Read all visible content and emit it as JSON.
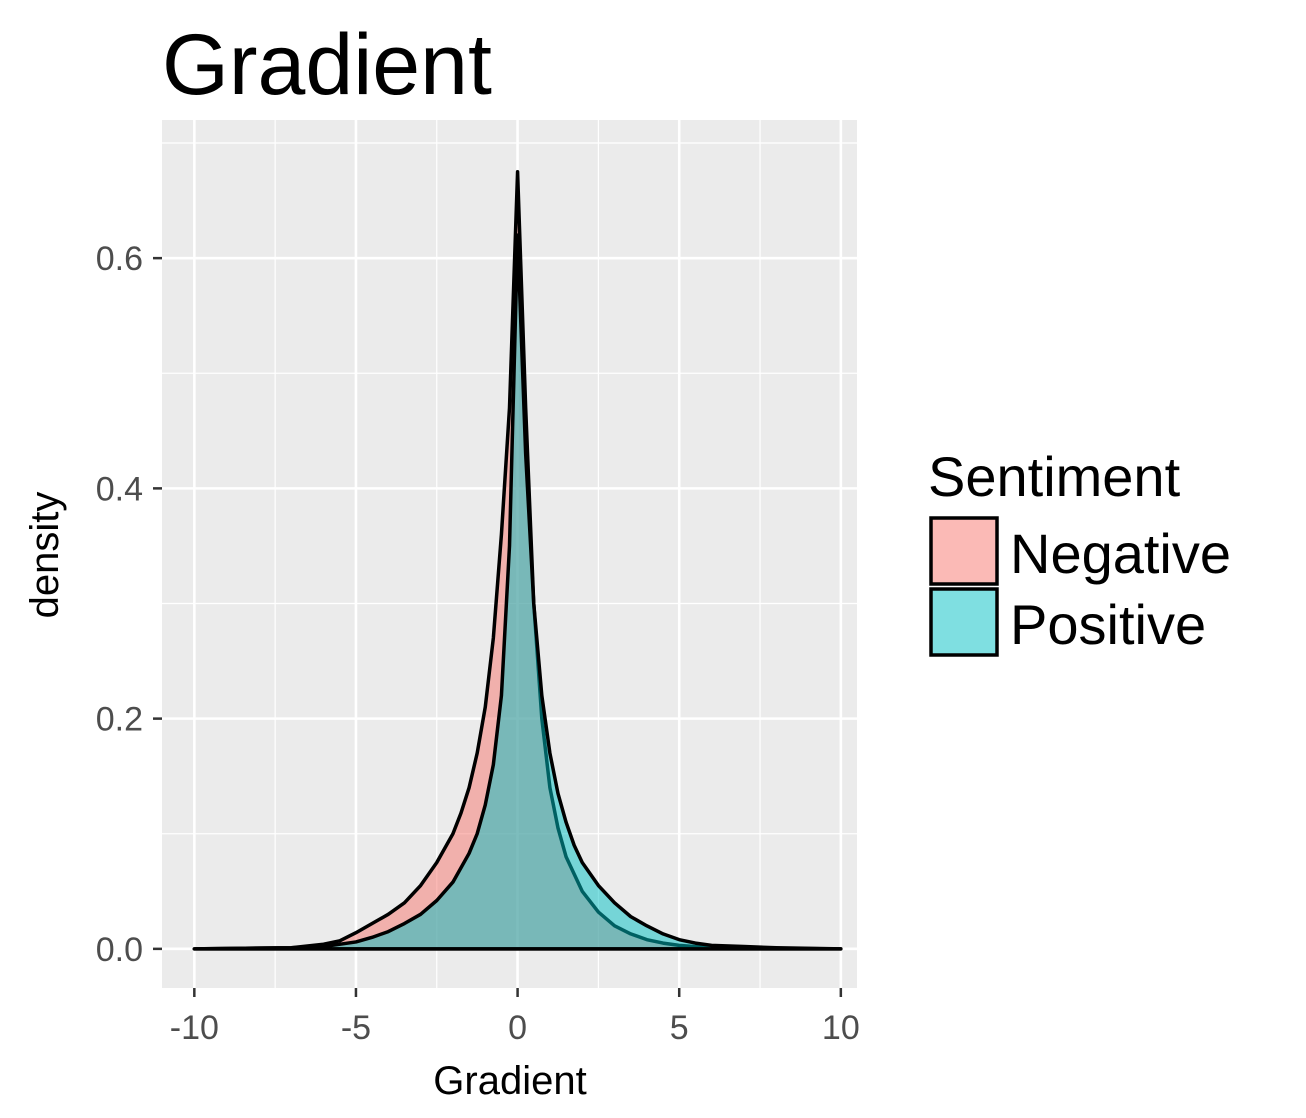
{
  "chart_data": {
    "type": "area",
    "title": "Gradient",
    "xlabel": "Gradient",
    "ylabel": "density",
    "xlim": [
      -11,
      10.5
    ],
    "ylim": [
      -0.034,
      0.72
    ],
    "x_ticks": [
      -10,
      -5,
      0,
      5,
      10
    ],
    "x_tick_labels": [
      "-10",
      "-5",
      "0",
      "5",
      "10"
    ],
    "y_ticks": [
      0.0,
      0.2,
      0.4,
      0.6
    ],
    "y_tick_labels": [
      "0.0",
      "0.2",
      "0.4",
      "0.6"
    ],
    "grid": true,
    "legend": {
      "title": "Sentiment",
      "placement": "right",
      "entries": [
        {
          "name": "Negative",
          "color": "#F8766D"
        },
        {
          "name": "Positive",
          "color": "#00BFC4"
        }
      ]
    },
    "series": [
      {
        "name": "Negative",
        "color": "#F8766D",
        "x": [
          -10,
          -7,
          -6,
          -5.5,
          -5,
          -4.5,
          -4,
          -3.5,
          -3,
          -2.5,
          -2,
          -1.75,
          -1.5,
          -1.25,
          -1,
          -0.75,
          -0.5,
          -0.25,
          0,
          0.25,
          0.5,
          0.75,
          1,
          1.25,
          1.5,
          2,
          2.5,
          3,
          3.5,
          4,
          4.5,
          5,
          5.5,
          6,
          7,
          10
        ],
        "y": [
          0,
          0.001,
          0.004,
          0.007,
          0.014,
          0.022,
          0.03,
          0.04,
          0.055,
          0.075,
          0.1,
          0.118,
          0.14,
          0.17,
          0.21,
          0.27,
          0.36,
          0.47,
          0.675,
          0.47,
          0.3,
          0.2,
          0.14,
          0.105,
          0.08,
          0.05,
          0.032,
          0.02,
          0.013,
          0.008,
          0.005,
          0.003,
          0.002,
          0.001,
          0.0005,
          0
        ]
      },
      {
        "name": "Positive",
        "color": "#00BFC4",
        "x": [
          -10,
          -7,
          -6,
          -5,
          -4.5,
          -4,
          -3.5,
          -3,
          -2.5,
          -2,
          -1.5,
          -1.25,
          -1,
          -0.75,
          -0.5,
          -0.25,
          0,
          0.25,
          0.5,
          0.75,
          1,
          1.25,
          1.5,
          1.75,
          2,
          2.5,
          3,
          3.5,
          4,
          4.5,
          5,
          5.5,
          6,
          7,
          8,
          10
        ],
        "y": [
          0,
          0.001,
          0.002,
          0.006,
          0.01,
          0.015,
          0.022,
          0.03,
          0.042,
          0.058,
          0.083,
          0.1,
          0.125,
          0.16,
          0.22,
          0.35,
          0.62,
          0.43,
          0.3,
          0.22,
          0.17,
          0.135,
          0.11,
          0.09,
          0.075,
          0.055,
          0.04,
          0.028,
          0.02,
          0.013,
          0.008,
          0.005,
          0.003,
          0.002,
          0.001,
          0
        ]
      }
    ]
  }
}
